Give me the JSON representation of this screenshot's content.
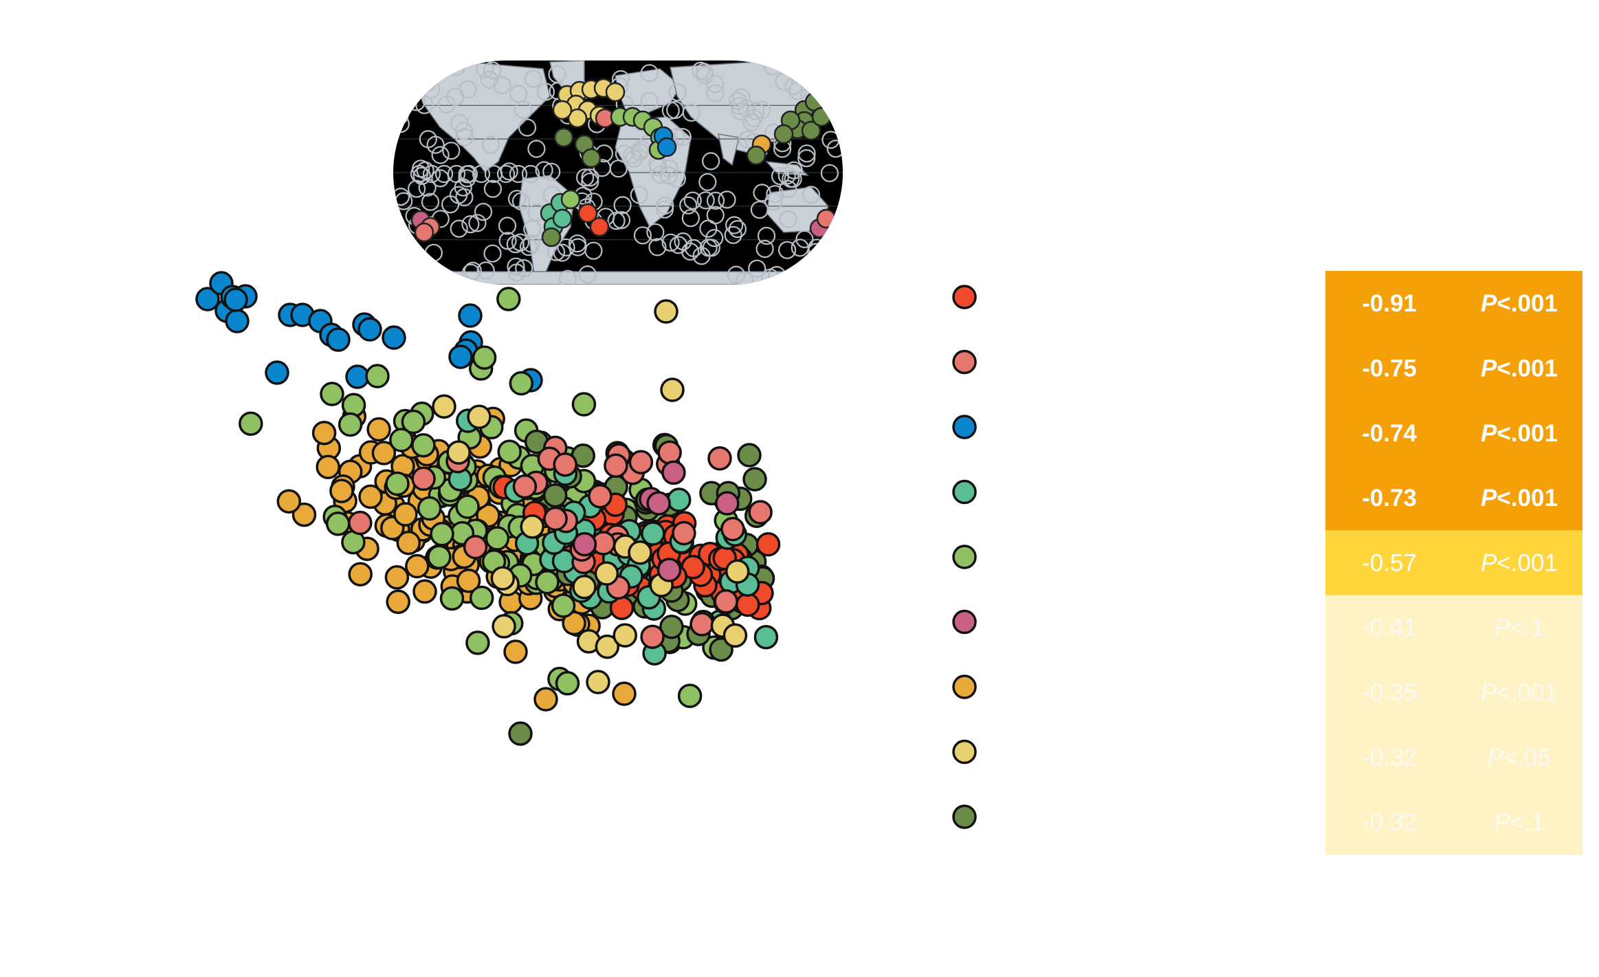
{
  "chart_data": {
    "type": "scatter",
    "title": "",
    "xlabel": "",
    "ylabel": "",
    "grid": false,
    "legend_placement": "right",
    "inset": {
      "type": "world-map",
      "projection": "equal-earth",
      "ocean_color": "#000000",
      "land_color": "#c9d0d8"
    },
    "colors": {
      "red": "#f04a2a",
      "salmon": "#e5776f",
      "blue": "#0a86cf",
      "teal": "#5bbd94",
      "lightgreen": "#8fc062",
      "pink": "#c76084",
      "orange": "#e8a93a",
      "yellow": "#e8d070",
      "darkgreen": "#6b8c48"
    },
    "series": [
      {
        "color": "#f04a2a",
        "correlation": "-0.91",
        "p_value": "P<.001",
        "significance": "strong"
      },
      {
        "color": "#e5776f",
        "correlation": "-0.75",
        "p_value": "P<.001",
        "significance": "strong"
      },
      {
        "color": "#0a86cf",
        "correlation": "-0.74",
        "p_value": "P<.001",
        "significance": "strong"
      },
      {
        "color": "#5bbd94",
        "correlation": "-0.73",
        "p_value": "P<.001",
        "significance": "strong"
      },
      {
        "color": "#8fc062",
        "correlation": "-0.57",
        "p_value": "P<.001",
        "significance": "moderate"
      },
      {
        "color": "#c76084",
        "correlation": "-0.41",
        "p_value": "P<.1",
        "significance": "weak"
      },
      {
        "color": "#e8a93a",
        "correlation": "-0.35",
        "p_value": "P<.001",
        "significance": "weak"
      },
      {
        "color": "#e8d070",
        "correlation": "-0.32",
        "p_value": "P<.05",
        "significance": "weak"
      },
      {
        "color": "#6b8c48",
        "correlation": "-0.32",
        "p_value": "P<.1",
        "significance": "weak"
      }
    ],
    "table_colors": {
      "strong": "#f5a006",
      "moderate": "#fed53a",
      "weak": "#fff2c4"
    }
  }
}
